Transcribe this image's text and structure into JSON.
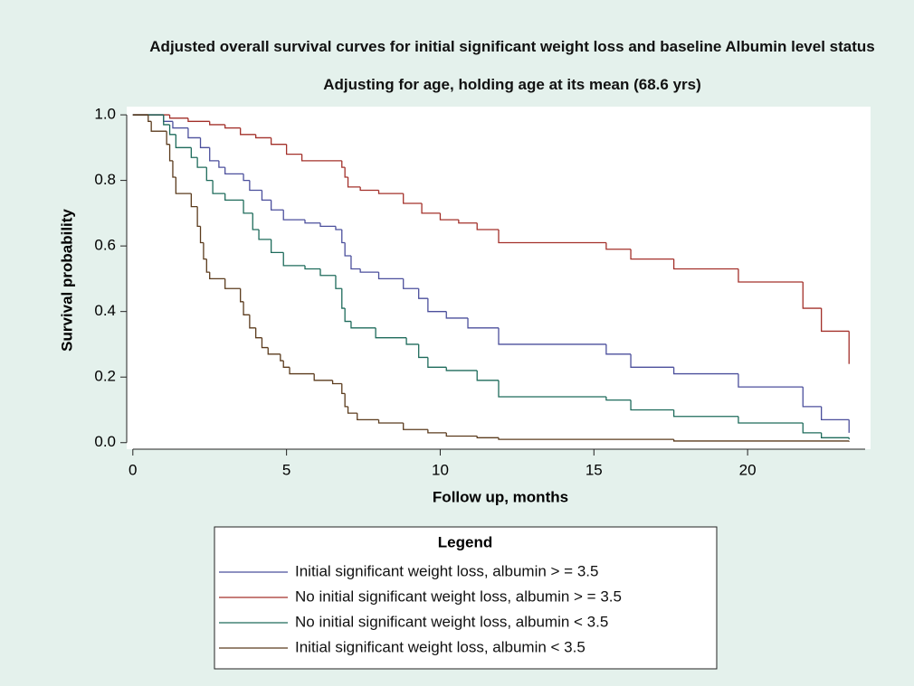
{
  "chart_data": {
    "type": "step",
    "title": "Adjusted overall survival curves for initial significant weight loss and baseline Albumin level status",
    "subtitle": "Adjusting for age, holding age at its mean (68.6 yrs)",
    "x_label": "Follow up, months",
    "y_label": "Survival probability",
    "legend_title": "Legend",
    "xlim": [
      -0.2,
      24.0
    ],
    "ylim": [
      -0.02,
      1.025
    ],
    "xticks": [
      0,
      5,
      10,
      15,
      20
    ],
    "yticks": [
      {
        "value": 0,
        "label": "0.0"
      },
      {
        "value": 0.2,
        "label": "0.2"
      },
      {
        "value": 0.4,
        "label": "0.4"
      },
      {
        "value": 0.6,
        "label": "0.6"
      },
      {
        "value": 0.8,
        "label": "0.8"
      },
      {
        "value": 1,
        "label": "1.0"
      }
    ],
    "series": [
      {
        "name": "Initial significant weight loss, albumin > = 3.5",
        "color": "#4b4f9c",
        "x": [
          0,
          1.0,
          1.3,
          1.8,
          2.2,
          2.5,
          2.8,
          3.0,
          3.6,
          3.8,
          4.2,
          4.5,
          4.9,
          5.6,
          6.1,
          6.6,
          6.8,
          6.9,
          7.1,
          7.4,
          8.0,
          8.8,
          9.3,
          9.6,
          10.2,
          10.9,
          11.9,
          15.4,
          16.2,
          17.6,
          19.7,
          21.8,
          22.4,
          23.3
        ],
        "values": [
          1,
          0.98,
          0.96,
          0.93,
          0.9,
          0.86,
          0.84,
          0.82,
          0.8,
          0.77,
          0.74,
          0.71,
          0.68,
          0.67,
          0.66,
          0.65,
          0.61,
          0.57,
          0.53,
          0.52,
          0.5,
          0.47,
          0.44,
          0.4,
          0.38,
          0.35,
          0.3,
          0.27,
          0.23,
          0.21,
          0.17,
          0.11,
          0.07,
          0.03
        ]
      },
      {
        "name": "No initial significant weight loss, albumin > = 3.5",
        "color": "#a3302a",
        "x": [
          0,
          1.2,
          1.8,
          2.5,
          3.0,
          3.5,
          4.0,
          4.5,
          5.0,
          5.5,
          6.8,
          6.9,
          7.0,
          7.4,
          8.0,
          8.8,
          9.4,
          10.0,
          10.6,
          11.2,
          11.9,
          15.4,
          16.2,
          17.6,
          19.7,
          21.8,
          22.4,
          23.3
        ],
        "values": [
          1,
          0.99,
          0.98,
          0.97,
          0.96,
          0.94,
          0.93,
          0.91,
          0.88,
          0.86,
          0.84,
          0.81,
          0.78,
          0.77,
          0.76,
          0.73,
          0.7,
          0.68,
          0.67,
          0.65,
          0.61,
          0.59,
          0.56,
          0.53,
          0.49,
          0.41,
          0.34,
          0.24
        ]
      },
      {
        "name": "No initial significant weight loss, albumin < 3.5",
        "color": "#1e6b5b",
        "x": [
          0,
          1.0,
          1.2,
          1.4,
          1.9,
          2.1,
          2.4,
          2.6,
          3.0,
          3.6,
          3.9,
          4.1,
          4.5,
          4.9,
          5.6,
          6.1,
          6.6,
          6.8,
          6.9,
          7.1,
          7.9,
          8.9,
          9.3,
          9.6,
          10.2,
          11.2,
          11.9,
          15.4,
          16.2,
          17.6,
          19.7,
          21.8,
          22.4,
          23.3
        ],
        "values": [
          1,
          0.97,
          0.94,
          0.9,
          0.87,
          0.84,
          0.8,
          0.76,
          0.74,
          0.7,
          0.65,
          0.62,
          0.58,
          0.54,
          0.53,
          0.51,
          0.47,
          0.41,
          0.37,
          0.35,
          0.32,
          0.3,
          0.26,
          0.23,
          0.22,
          0.19,
          0.14,
          0.13,
          0.1,
          0.08,
          0.06,
          0.03,
          0.015,
          0.01
        ]
      },
      {
        "name": "Initial significant weight loss, albumin < 3.5",
        "color": "#5b3b1d",
        "x": [
          0,
          0.5,
          0.6,
          1.1,
          1.2,
          1.3,
          1.4,
          1.9,
          2.1,
          2.2,
          2.3,
          2.4,
          2.5,
          3.0,
          3.5,
          3.6,
          3.8,
          4.0,
          4.2,
          4.4,
          4.8,
          4.9,
          5.1,
          5.9,
          6.5,
          6.8,
          6.9,
          7.0,
          7.3,
          8.0,
          8.8,
          9.6,
          10.2,
          11.2,
          11.9,
          17.6,
          23.3
        ],
        "values": [
          1,
          0.98,
          0.95,
          0.91,
          0.86,
          0.81,
          0.76,
          0.72,
          0.66,
          0.61,
          0.56,
          0.52,
          0.5,
          0.47,
          0.43,
          0.39,
          0.35,
          0.32,
          0.29,
          0.27,
          0.25,
          0.23,
          0.21,
          0.19,
          0.18,
          0.15,
          0.11,
          0.09,
          0.07,
          0.06,
          0.04,
          0.03,
          0.02,
          0.015,
          0.01,
          0.005,
          0.003
        ]
      }
    ]
  }
}
